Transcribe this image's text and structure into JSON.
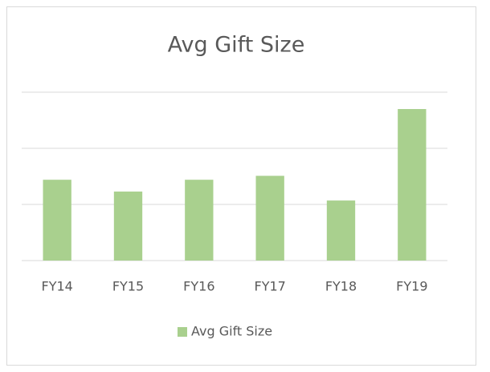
{
  "chart_data": {
    "type": "bar",
    "title": "Avg Gift Size",
    "categories": [
      "FY14",
      "FY15",
      "FY16",
      "FY17",
      "FY18",
      "FY19"
    ],
    "series": [
      {
        "name": "Avg Gift Size",
        "color": "#a9d08e",
        "values": [
          1.44,
          1.23,
          1.44,
          1.51,
          1.07,
          2.7
        ]
      }
    ],
    "ylim": [
      0,
      3
    ],
    "yticks": [
      0,
      1,
      2,
      3
    ],
    "grid": true,
    "legend": "bottom"
  }
}
